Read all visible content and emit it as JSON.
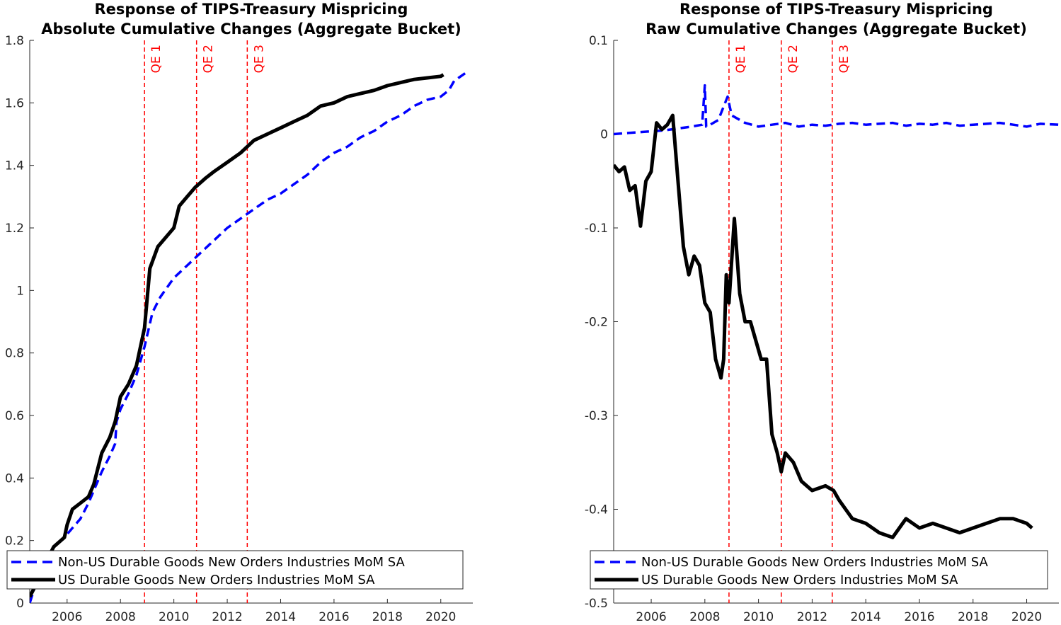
{
  "chart_data": [
    {
      "type": "line",
      "title": "Response of TIPS-Treasury Mispricing",
      "subtitle": "Absolute Cumulative Changes (Aggregate Bucket)",
      "xlabel": "",
      "ylabel": "",
      "xlim": [
        2004.6,
        2021.2
      ],
      "ylim": [
        0,
        1.8
      ],
      "xticks": [
        2006,
        2008,
        2010,
        2012,
        2014,
        2016,
        2018,
        2020
      ],
      "yticks": [
        0,
        0.2,
        0.4,
        0.6,
        0.8,
        1,
        1.2,
        1.4,
        1.6,
        1.8
      ],
      "ytick_labels": [
        "0",
        "0.2",
        "0.4",
        "0.6",
        "0.8",
        "1",
        "1.2",
        "1.4",
        "1.6",
        "1.8"
      ],
      "grid": false,
      "legend_position": "bottom-left",
      "vlines": [
        {
          "x": 2008.9,
          "label": "QE 1"
        },
        {
          "x": 2010.85,
          "label": "QE 2"
        },
        {
          "x": 2012.75,
          "label": "QE 3"
        }
      ],
      "series": [
        {
          "name": "Non-US Durable Goods New Orders Industries MoM SA",
          "style": "dashed",
          "color": "#0000ff",
          "x": [
            2004.6,
            2004.9,
            2005.2,
            2005.5,
            2005.9,
            2006.2,
            2006.5,
            2006.8,
            2007.0,
            2007.3,
            2007.6,
            2007.8,
            2007.85,
            2008.0,
            2008.3,
            2008.6,
            2008.9,
            2009.2,
            2009.5,
            2010.0,
            2010.5,
            2011.0,
            2011.5,
            2012.0,
            2012.5,
            2013.0,
            2013.5,
            2014.0,
            2014.5,
            2015.0,
            2015.5,
            2016.0,
            2016.5,
            2017.0,
            2017.5,
            2018.0,
            2018.5,
            2019.0,
            2019.5,
            2020.0,
            2020.3,
            2020.5,
            2021.0
          ],
          "values": [
            0.0,
            0.08,
            0.14,
            0.18,
            0.21,
            0.24,
            0.27,
            0.32,
            0.36,
            0.42,
            0.47,
            0.51,
            0.58,
            0.62,
            0.67,
            0.73,
            0.82,
            0.93,
            0.98,
            1.04,
            1.08,
            1.12,
            1.16,
            1.2,
            1.23,
            1.26,
            1.29,
            1.31,
            1.34,
            1.37,
            1.41,
            1.44,
            1.46,
            1.49,
            1.51,
            1.54,
            1.56,
            1.59,
            1.61,
            1.62,
            1.64,
            1.67,
            1.7
          ]
        },
        {
          "name": "US Durable Goods New Orders Industries MoM SA",
          "style": "solid",
          "color": "#000000",
          "x": [
            2004.6,
            2004.9,
            2005.2,
            2005.5,
            2005.9,
            2006.0,
            2006.2,
            2006.5,
            2006.8,
            2007.0,
            2007.3,
            2007.6,
            2007.8,
            2008.0,
            2008.3,
            2008.6,
            2008.9,
            2009.1,
            2009.4,
            2009.7,
            2010.0,
            2010.2,
            2010.5,
            2010.8,
            2011.2,
            2011.5,
            2012.0,
            2012.5,
            2013.0,
            2013.5,
            2014.0,
            2014.5,
            2015.0,
            2015.5,
            2016.0,
            2016.5,
            2017.0,
            2017.5,
            2018.0,
            2018.5,
            2019.0,
            2019.5,
            2020.0,
            2020.1
          ],
          "values": [
            0.02,
            0.07,
            0.13,
            0.18,
            0.21,
            0.25,
            0.3,
            0.32,
            0.34,
            0.38,
            0.48,
            0.53,
            0.58,
            0.66,
            0.7,
            0.76,
            0.88,
            1.07,
            1.14,
            1.17,
            1.2,
            1.27,
            1.3,
            1.33,
            1.36,
            1.38,
            1.41,
            1.44,
            1.48,
            1.5,
            1.52,
            1.54,
            1.56,
            1.59,
            1.6,
            1.62,
            1.63,
            1.64,
            1.655,
            1.665,
            1.675,
            1.68,
            1.685,
            1.69
          ]
        }
      ]
    },
    {
      "type": "line",
      "title": "Response of TIPS-Treasury Mispricing",
      "subtitle": "Raw Cumulative Changes (Aggregate Bucket)",
      "xlabel": "",
      "ylabel": "",
      "xlim": [
        2004.6,
        2021.2
      ],
      "ylim": [
        -0.5,
        0.1
      ],
      "xticks": [
        2006,
        2008,
        2010,
        2012,
        2014,
        2016,
        2018,
        2020
      ],
      "yticks": [
        -0.5,
        -0.4,
        -0.3,
        -0.2,
        -0.1,
        0,
        0.1
      ],
      "ytick_labels": [
        "-0.5",
        "-0.4",
        "-0.3",
        "-0.2",
        "-0.1",
        "0",
        "0.1"
      ],
      "grid": false,
      "legend_position": "bottom-left",
      "vlines": [
        {
          "x": 2008.9,
          "label": "QE 1"
        },
        {
          "x": 2010.85,
          "label": "QE 2"
        },
        {
          "x": 2012.75,
          "label": "QE 3"
        }
      ],
      "series": [
        {
          "name": "Non-US Durable Goods New Orders Industries MoM SA",
          "style": "dashed",
          "color": "#0000ff",
          "x": [
            2004.6,
            2005.0,
            2005.5,
            2006.0,
            2006.5,
            2007.0,
            2007.5,
            2007.9,
            2008.0,
            2008.05,
            2008.2,
            2008.5,
            2008.85,
            2009.0,
            2009.5,
            2010.0,
            2010.5,
            2011.0,
            2011.5,
            2012.0,
            2012.5,
            2013.0,
            2013.5,
            2014.0,
            2014.5,
            2015.0,
            2015.5,
            2016.0,
            2016.5,
            2017.0,
            2017.5,
            2018.0,
            2018.5,
            2019.0,
            2019.5,
            2020.0,
            2020.5,
            2021.2
          ],
          "values": [
            0.0,
            0.001,
            0.002,
            0.003,
            0.004,
            0.006,
            0.008,
            0.01,
            0.052,
            0.008,
            0.01,
            0.015,
            0.04,
            0.02,
            0.012,
            0.008,
            0.01,
            0.012,
            0.008,
            0.01,
            0.009,
            0.011,
            0.012,
            0.01,
            0.011,
            0.012,
            0.009,
            0.011,
            0.01,
            0.012,
            0.009,
            0.01,
            0.011,
            0.012,
            0.01,
            0.008,
            0.011,
            0.01
          ]
        },
        {
          "name": "US Durable Goods New Orders Industries MoM SA",
          "style": "solid",
          "color": "#000000",
          "x": [
            2004.6,
            2004.8,
            2005.0,
            2005.2,
            2005.4,
            2005.6,
            2005.8,
            2006.0,
            2006.2,
            2006.4,
            2006.6,
            2006.8,
            2007.0,
            2007.2,
            2007.4,
            2007.6,
            2007.8,
            2008.0,
            2008.2,
            2008.4,
            2008.6,
            2008.7,
            2008.8,
            2008.9,
            2009.1,
            2009.3,
            2009.5,
            2009.7,
            2009.9,
            2010.1,
            2010.3,
            2010.5,
            2010.7,
            2010.85,
            2011.0,
            2011.3,
            2011.6,
            2012.0,
            2012.5,
            2012.8,
            2013.0,
            2013.5,
            2014.0,
            2014.5,
            2015.0,
            2015.5,
            2016.0,
            2016.5,
            2017.0,
            2017.5,
            2018.0,
            2018.5,
            2019.0,
            2019.5,
            2020.0,
            2020.2
          ],
          "values": [
            -0.033,
            -0.04,
            -0.035,
            -0.06,
            -0.055,
            -0.098,
            -0.05,
            -0.04,
            0.012,
            0.005,
            0.01,
            0.02,
            -0.05,
            -0.12,
            -0.15,
            -0.13,
            -0.14,
            -0.18,
            -0.19,
            -0.24,
            -0.26,
            -0.24,
            -0.15,
            -0.18,
            -0.09,
            -0.17,
            -0.2,
            -0.2,
            -0.22,
            -0.24,
            -0.24,
            -0.32,
            -0.34,
            -0.36,
            -0.34,
            -0.35,
            -0.37,
            -0.38,
            -0.375,
            -0.38,
            -0.39,
            -0.41,
            -0.415,
            -0.425,
            -0.43,
            -0.41,
            -0.42,
            -0.415,
            -0.42,
            -0.425,
            -0.42,
            -0.415,
            -0.41,
            -0.41,
            -0.415,
            -0.42
          ]
        }
      ]
    }
  ]
}
